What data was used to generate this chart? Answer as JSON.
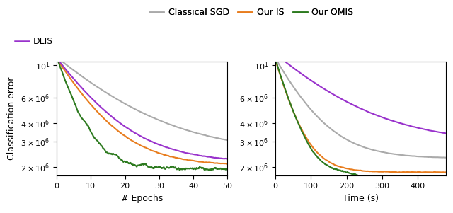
{
  "colors": {
    "classical_sgd": "#aaaaaa",
    "our_is": "#e87d1e",
    "our_omis": "#2d7a1f",
    "dlis": "#9932cc"
  },
  "ylim": [
    1750000.0,
    10500000.0
  ],
  "yticks": [
    2000000.0,
    3000000.0,
    4000000.0,
    6000000.0,
    10000000.0
  ],
  "ylabel": "Classification error",
  "xlabel1": "# Epochs",
  "xlabel2": "Time (s)",
  "label_fontsize": 9,
  "tick_fontsize": 8,
  "legend_fontsize": 9,
  "lw": 1.5,
  "ep_xlim": [
    0,
    50
  ],
  "ep_xticks": [
    0,
    10,
    20,
    30,
    40,
    50
  ],
  "t_xlim": [
    0,
    480
  ],
  "t_xticks": [
    0,
    100,
    200,
    300,
    400
  ]
}
